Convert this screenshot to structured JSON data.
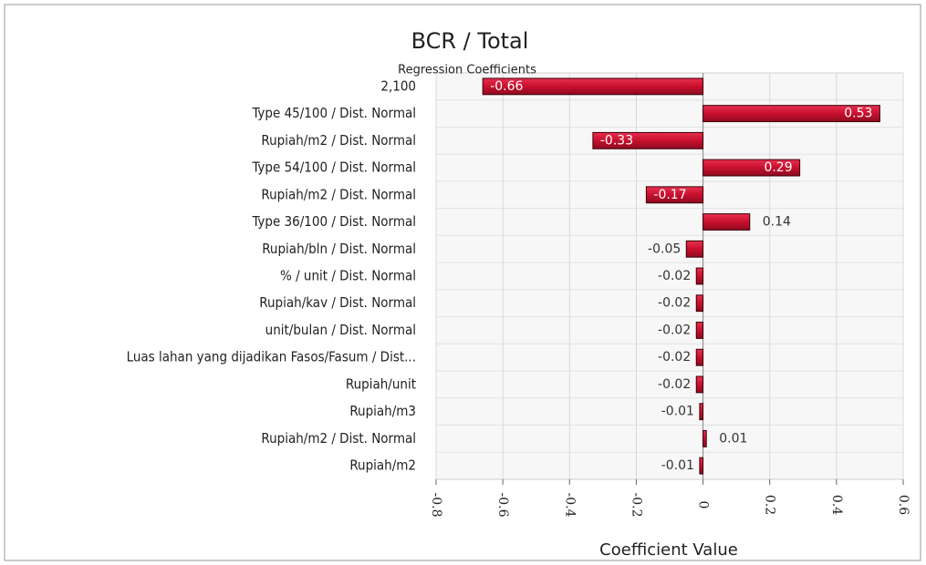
{
  "chart_data": {
    "type": "bar",
    "orientation": "horizontal",
    "title": "BCR / Total",
    "subtitle": "Regression Coefficients",
    "x_label": "Coefficient Value",
    "categories": [
      "2,100",
      "Type 45/100 / Dist. Normal",
      "Rupiah/m2 / Dist. Normal",
      "Type 54/100 / Dist. Normal",
      "Rupiah/m2 / Dist. Normal",
      "Type 36/100 / Dist. Normal",
      "Rupiah/bln / Dist. Normal",
      "% / unit / Dist. Normal",
      "Rupiah/kav / Dist. Normal",
      "unit/bulan / Dist. Normal",
      "Luas lahan yang dijadikan Fasos/Fasum / Dist...",
      "Rupiah/unit",
      "Rupiah/m3",
      "Rupiah/m2 / Dist. Normal",
      "Rupiah/m2"
    ],
    "values": [
      -0.66,
      0.53,
      -0.33,
      0.29,
      -0.17,
      0.14,
      -0.05,
      -0.02,
      -0.02,
      -0.02,
      -0.02,
      -0.02,
      -0.01,
      0.01,
      -0.01
    ],
    "color": "#c8102e",
    "xlim": [
      -0.8,
      0.6
    ],
    "xticks": [
      -0.8,
      -0.6,
      -0.4,
      -0.2,
      0,
      0.2,
      0.4,
      0.6
    ],
    "grid": true
  }
}
